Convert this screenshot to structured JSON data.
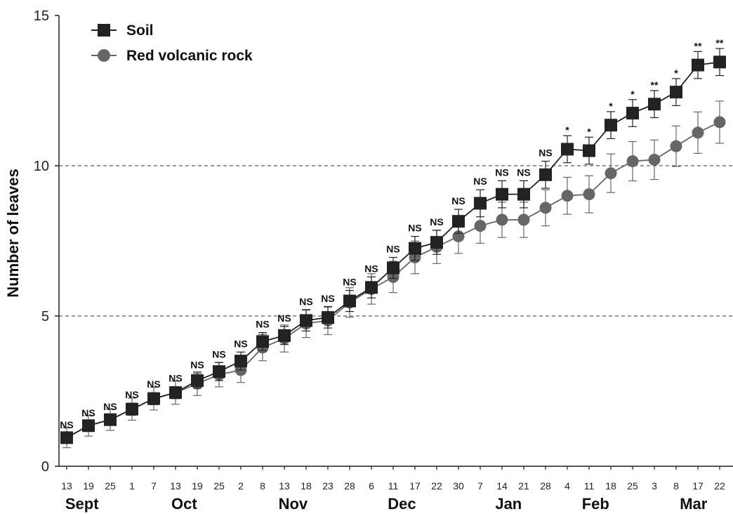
{
  "chart_data": {
    "type": "line",
    "title": "",
    "ylabel": "Number of leaves",
    "xlabel": "",
    "ylim": [
      0,
      15
    ],
    "yticks": [
      0,
      5,
      10,
      15
    ],
    "grid": "dashed horizontal lines at 5 and 10",
    "legend_position": "top-left",
    "x_tick_labels": [
      "13",
      "19",
      "25",
      "1",
      "7",
      "13",
      "19",
      "25",
      "2",
      "8",
      "13",
      "18",
      "23",
      "28",
      "6",
      "11",
      "17",
      "22",
      "30",
      "7",
      "14",
      "21",
      "28",
      "4",
      "11",
      "18",
      "25",
      "3",
      "8",
      "17",
      "22"
    ],
    "months": [
      {
        "label": "Sept",
        "index": 0.7
      },
      {
        "label": "Oct",
        "index": 5.4
      },
      {
        "label": "Nov",
        "index": 10.4
      },
      {
        "label": "Dec",
        "index": 15.4
      },
      {
        "label": "Jan",
        "index": 20.3
      },
      {
        "label": "Feb",
        "index": 24.3
      },
      {
        "label": "Mar",
        "index": 28.8
      }
    ],
    "significance": [
      "NS",
      "NS",
      "NS",
      "NS",
      "NS",
      "NS",
      "NS",
      "NS",
      "NS",
      "NS",
      "NS",
      "NS",
      "NS",
      "NS",
      "NS",
      "NS",
      "NS",
      "NS",
      "NS",
      "NS",
      "NS",
      "NS",
      "NS",
      "*",
      "*",
      "*",
      "*",
      "**",
      "*",
      "**",
      "**"
    ],
    "series": [
      {
        "name": "Soil",
        "marker": "square",
        "color": "#222222",
        "values": [
          0.95,
          1.35,
          1.55,
          1.9,
          2.25,
          2.45,
          2.85,
          3.15,
          3.5,
          4.15,
          4.35,
          4.85,
          4.95,
          5.5,
          5.95,
          6.6,
          7.25,
          7.45,
          8.15,
          8.75,
          9.05,
          9.05,
          9.7,
          10.55,
          10.5,
          11.35,
          11.75,
          12.05,
          12.45,
          13.35,
          13.45
        ],
        "errors": [
          0.15,
          0.15,
          0.15,
          0.2,
          0.2,
          0.2,
          0.25,
          0.3,
          0.3,
          0.3,
          0.3,
          0.35,
          0.35,
          0.35,
          0.35,
          0.35,
          0.4,
          0.4,
          0.4,
          0.45,
          0.45,
          0.45,
          0.45,
          0.45,
          0.45,
          0.45,
          0.45,
          0.45,
          0.45,
          0.45,
          0.45
        ]
      },
      {
        "name": "Red volcanic rock",
        "marker": "circle",
        "color": "#666666",
        "values": [
          0.95,
          1.35,
          1.55,
          1.9,
          2.25,
          2.45,
          2.75,
          3.05,
          3.2,
          3.95,
          4.25,
          4.75,
          4.85,
          5.45,
          5.9,
          6.3,
          6.95,
          7.3,
          7.65,
          8.0,
          8.2,
          8.2,
          8.6,
          9.0,
          9.05,
          9.75,
          10.15,
          10.2,
          10.65,
          11.1,
          11.45
        ]
      }
    ]
  }
}
